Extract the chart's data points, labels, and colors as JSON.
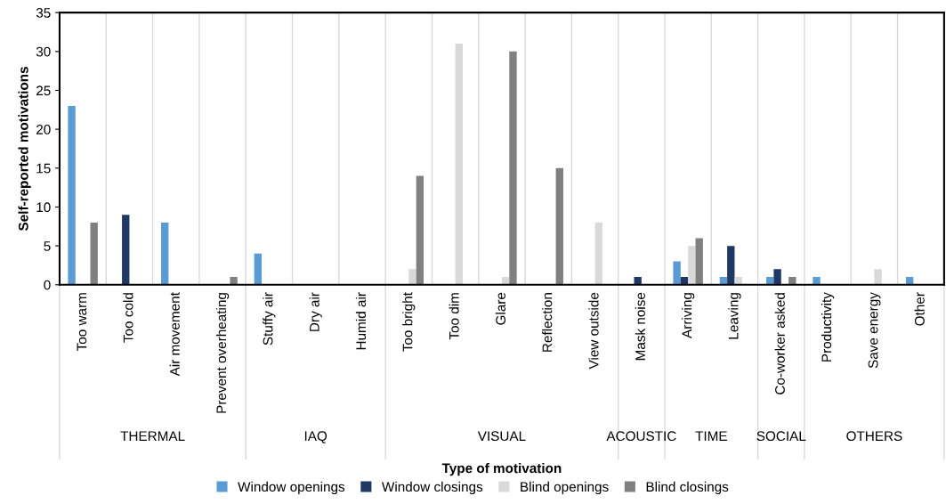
{
  "chart_data": {
    "type": "bar",
    "xlabel": "Type of motivation",
    "ylabel": "Self-reported motivations",
    "categories": [
      "Too warm",
      "Too cold",
      "Air movement",
      "Prevent overheating",
      "Stuffy air",
      "Dry air",
      "Humid air",
      "Too bright",
      "Too dim",
      "Glare",
      "Reflection",
      "View outside",
      "Mask noise",
      "Arriving",
      "Leaving",
      "Co-worker asked",
      "Productivity",
      "Save energy",
      "Other"
    ],
    "series": [
      {
        "name": "Window openings",
        "color": "#5b9bd5",
        "values": [
          23,
          0,
          8,
          0,
          4,
          0,
          0,
          0,
          0,
          0,
          0,
          0,
          0,
          3,
          1,
          1,
          1,
          0,
          1
        ]
      },
      {
        "name": "Window closings",
        "color": "#203864",
        "values": [
          0,
          9,
          0,
          0,
          0,
          0,
          0,
          0,
          0,
          0,
          0,
          0,
          1,
          1,
          5,
          2,
          0,
          0,
          0
        ]
      },
      {
        "name": "Blind openings",
        "color": "#d9d9d9",
        "values": [
          0,
          0,
          0,
          0,
          0,
          0,
          0,
          2,
          31,
          1,
          0,
          8,
          0,
          5,
          1,
          0,
          0,
          2,
          0
        ]
      },
      {
        "name": "Blind closings",
        "color": "#808080",
        "values": [
          8,
          0,
          0,
          1,
          0,
          0,
          0,
          14,
          0,
          30,
          15,
          0,
          0,
          6,
          0,
          1,
          0,
          0,
          0
        ]
      }
    ],
    "annotations": [
      "THERMAL",
      "IAQ",
      "VISUAL",
      "ACOUSTIC",
      "TIME",
      "SOCIAL",
      "OTHERS"
    ],
    "ylim": [
      0,
      35
    ],
    "yticks": [
      0,
      5,
      10,
      15,
      20,
      25,
      30,
      35
    ],
    "grid": "x",
    "legend": "bottom"
  }
}
